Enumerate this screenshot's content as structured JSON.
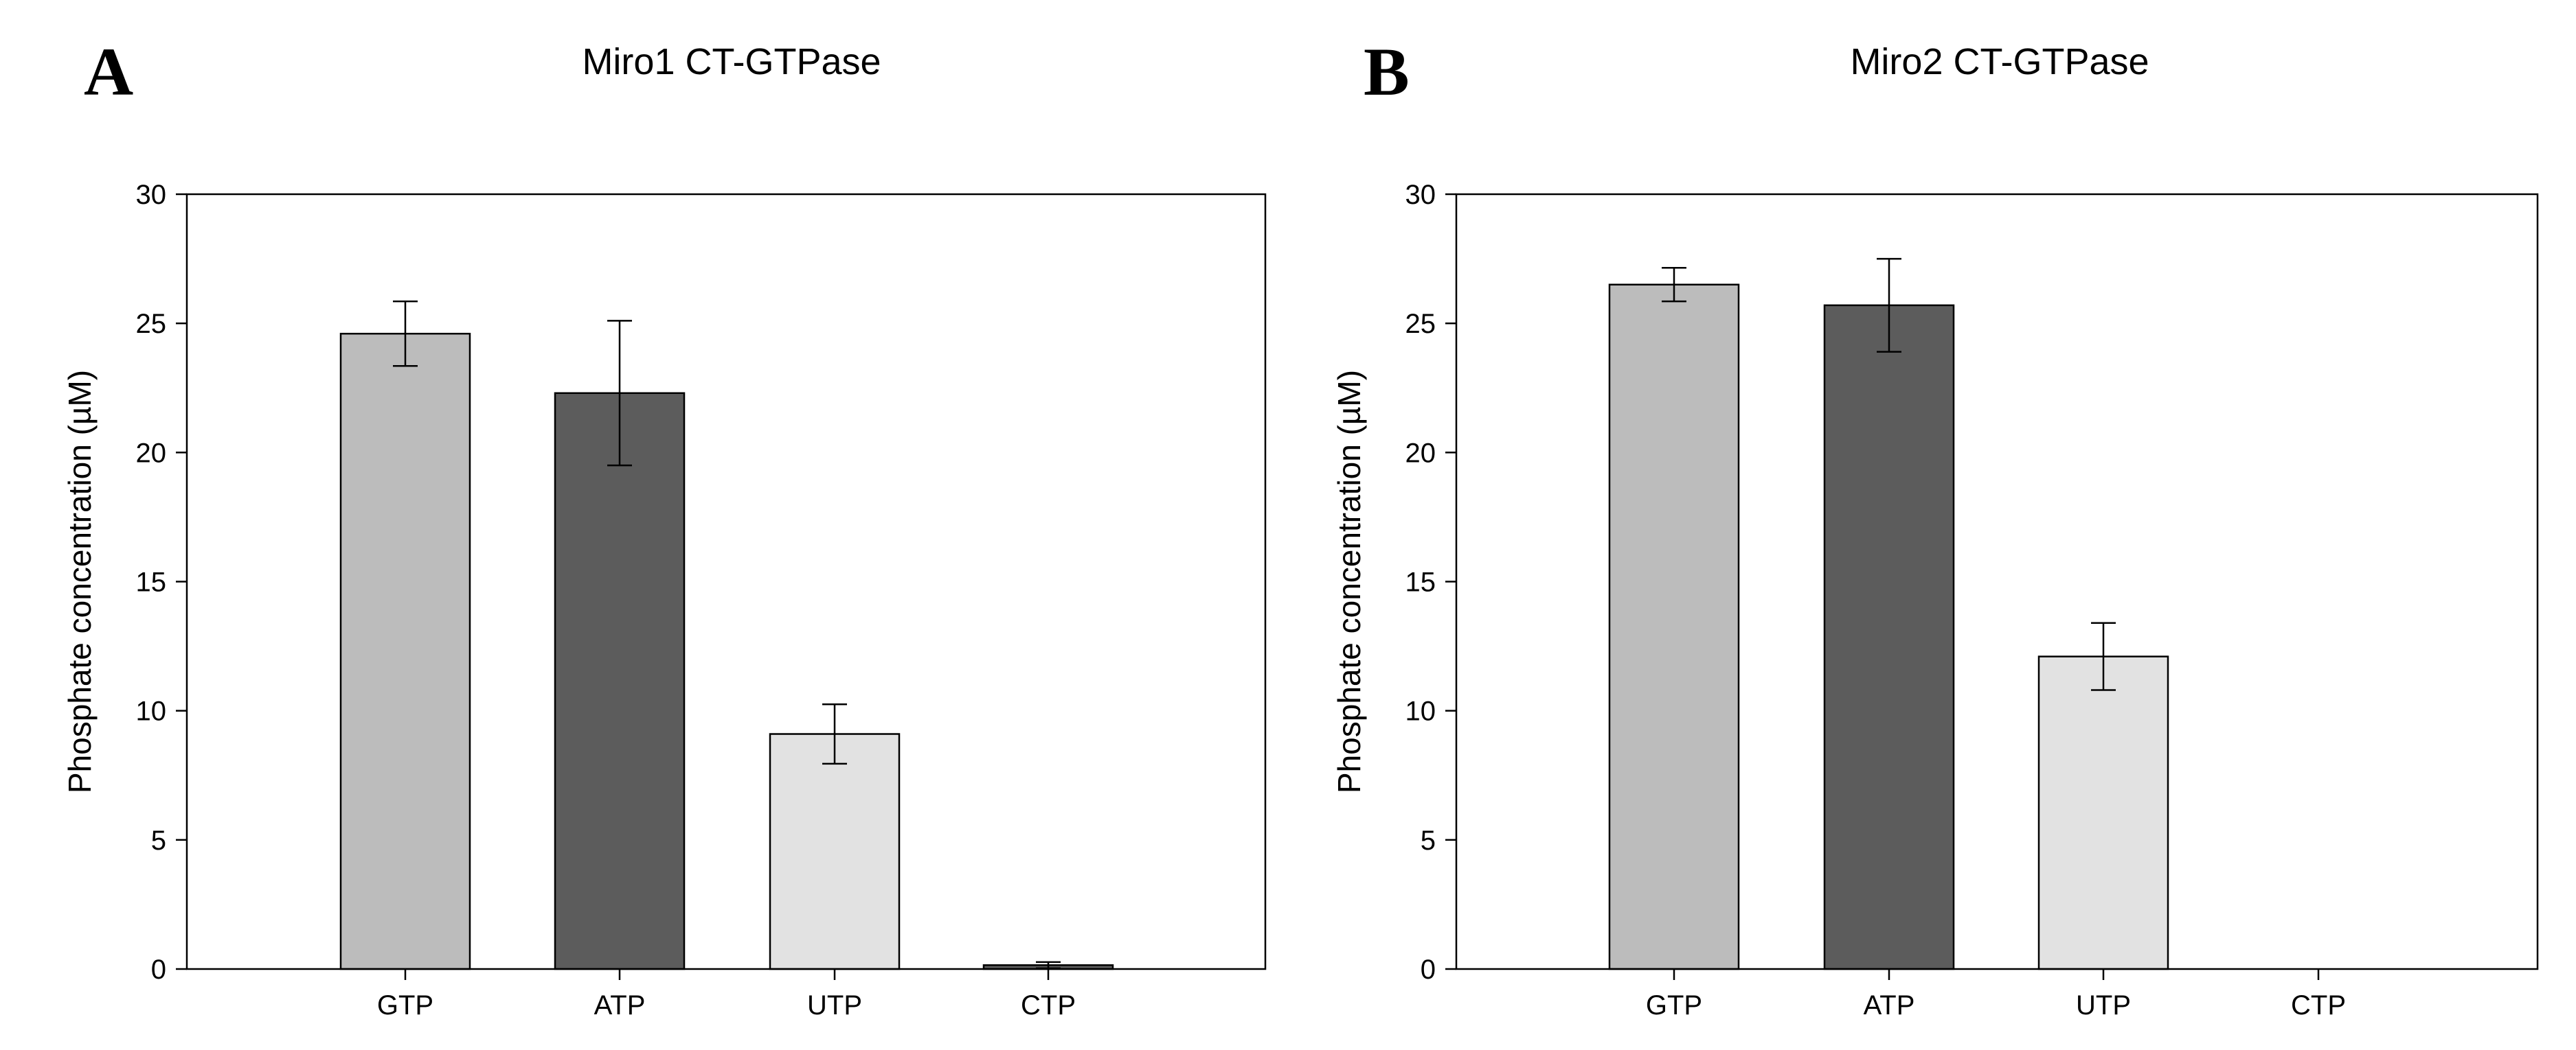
{
  "chart_data": [
    {
      "type": "bar",
      "panel_label": "A",
      "title": "Miro1 CT-GTPase",
      "ylabel": "Phosphate concentration (µM)",
      "xlabel": "",
      "ylim": [
        0,
        30
      ],
      "yticks": [
        0,
        5,
        10,
        15,
        20,
        25,
        30
      ],
      "categories": [
        "GTP",
        "ATP",
        "UTP",
        "CTP"
      ],
      "values": [
        24.6,
        22.3,
        9.1,
        0.15
      ],
      "errors": [
        1.25,
        2.8,
        1.15,
        0.12
      ],
      "colors": [
        "#bcbcbc",
        "#5c5c5c",
        "#e2e2e2",
        "#5c5c5c"
      ],
      "grid": false,
      "legend": "none"
    },
    {
      "type": "bar",
      "panel_label": "B",
      "title": "Miro2 CT-GTPase",
      "ylabel": "Phosphate concentration (µM)",
      "xlabel": "",
      "ylim": [
        0,
        30
      ],
      "yticks": [
        0,
        5,
        10,
        15,
        20,
        25,
        30
      ],
      "categories": [
        "GTP",
        "ATP",
        "UTP",
        "CTP"
      ],
      "values": [
        26.5,
        25.7,
        12.1,
        0
      ],
      "errors": [
        0.65,
        1.8,
        1.3,
        0
      ],
      "colors": [
        "#bcbcbc",
        "#5c5c5c",
        "#e2e2e2",
        "#5c5c5c"
      ],
      "grid": false,
      "legend": "none"
    }
  ]
}
